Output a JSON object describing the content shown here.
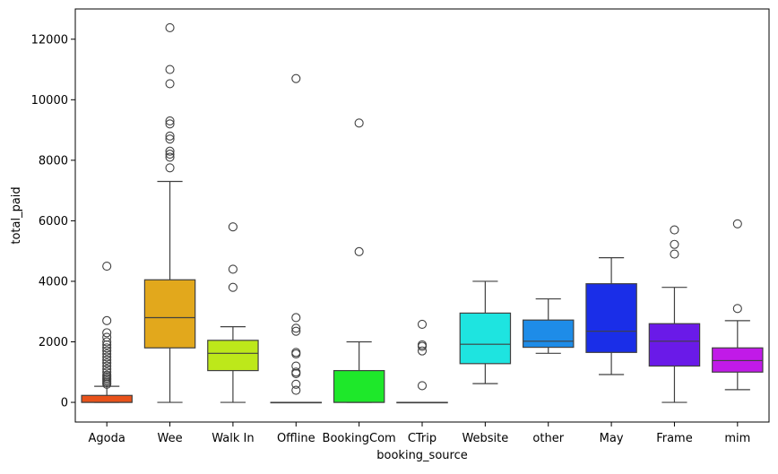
{
  "chart_data": {
    "type": "boxplot",
    "title": "",
    "xlabel": "booking_source",
    "ylabel": "total_paid",
    "ylim": [
      -650,
      13000
    ],
    "yticks": [
      0,
      2000,
      4000,
      6000,
      8000,
      10000,
      12000
    ],
    "ytick_labels": [
      "0",
      "2000",
      "4000",
      "6000",
      "8000",
      "10000",
      "12000"
    ],
    "grid": false,
    "categories": [
      "Agoda",
      "Wee",
      "Walk In",
      "Offline",
      "BookingCom",
      "CTrip",
      "Website",
      "other",
      "May",
      "Frame",
      "mim"
    ],
    "boxes": [
      {
        "name": "Agoda",
        "color": "#e8521a",
        "whisker_low": 0,
        "q1": 0,
        "median": 0,
        "q3": 230,
        "whisker_high": 530,
        "outliers": [
          4500,
          2700,
          2300,
          2150,
          2000,
          1900,
          1800,
          1700,
          1600,
          1500,
          1400,
          1300,
          1200,
          1100,
          1000,
          900,
          850,
          800,
          750,
          700,
          650,
          600
        ]
      },
      {
        "name": "Wee",
        "color": "#e2a81c",
        "whisker_low": 0,
        "q1": 1800,
        "median": 2800,
        "q3": 4050,
        "whisker_high": 7300,
        "outliers": [
          12380,
          11000,
          10530,
          9300,
          9200,
          8800,
          8700,
          8300,
          8200,
          8100,
          7750
        ]
      },
      {
        "name": "Walk In",
        "color": "#bde81a",
        "whisker_low": 0,
        "q1": 1050,
        "median": 1620,
        "q3": 2050,
        "whisker_high": 2500,
        "outliers": [
          5800,
          4400,
          3800
        ]
      },
      {
        "name": "Offline",
        "color": "#6fe81a",
        "whisker_low": 0,
        "q1": 0,
        "median": 0,
        "q3": 0,
        "whisker_high": 0,
        "outliers": [
          10700,
          2800,
          2450,
          2350,
          1650,
          1600,
          1200,
          1000,
          950,
          600,
          400
        ]
      },
      {
        "name": "BookingCom",
        "color": "#1ee82a",
        "whisker_low": 0,
        "q1": 0,
        "median": 0,
        "q3": 1050,
        "whisker_high": 2000,
        "outliers": [
          9230,
          4980
        ]
      },
      {
        "name": "CTrip",
        "color": "#1ae880",
        "whisker_low": 0,
        "q1": 0,
        "median": 0,
        "q3": 0,
        "whisker_high": 0,
        "outliers": [
          2580,
          1900,
          1850,
          1700,
          550
        ]
      },
      {
        "name": "Website",
        "color": "#1ee4e0",
        "whisker_low": 620,
        "q1": 1280,
        "median": 1920,
        "q3": 2950,
        "whisker_high": 4000,
        "outliers": []
      },
      {
        "name": "other",
        "color": "#1e8ce8",
        "whisker_low": 1620,
        "q1": 1820,
        "median": 2020,
        "q3": 2720,
        "whisker_high": 3420,
        "outliers": []
      },
      {
        "name": "May",
        "color": "#1a2ee8",
        "whisker_low": 920,
        "q1": 1650,
        "median": 2350,
        "q3": 3920,
        "whisker_high": 4780,
        "outliers": []
      },
      {
        "name": "Frame",
        "color": "#6a1ae8",
        "whisker_low": 0,
        "q1": 1200,
        "median": 2020,
        "q3": 2600,
        "whisker_high": 3800,
        "outliers": [
          5700,
          5220,
          4900
        ]
      },
      {
        "name": "mim",
        "color": "#c11ae8",
        "whisker_low": 420,
        "q1": 1000,
        "median": 1380,
        "q3": 1800,
        "whisker_high": 2700,
        "outliers": [
          5900,
          3100
        ]
      }
    ]
  }
}
